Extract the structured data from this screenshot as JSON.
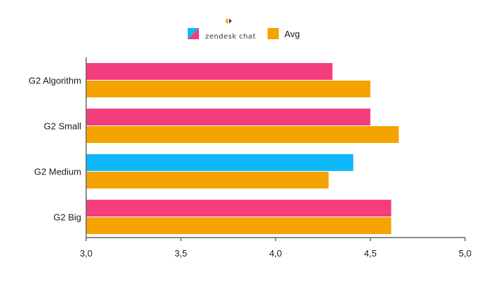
{
  "chart_data": {
    "type": "bar",
    "orientation": "horizontal",
    "categories": [
      "G2 Algorithm",
      "G2 Small",
      "G2 Medium",
      "G2 Big"
    ],
    "series": [
      {
        "name": "zendesk chat",
        "values": [
          4.3,
          4.5,
          4.41,
          4.61
        ]
      },
      {
        "name": "Avg",
        "values": [
          4.5,
          4.65,
          4.28,
          4.61
        ]
      }
    ],
    "xlim": [
      3.0,
      5.0
    ],
    "x_ticks": [
      "3,0",
      "3,5",
      "4,0",
      "4,5",
      "5,0"
    ],
    "x_tick_values": [
      3.0,
      3.5,
      4.0,
      4.5,
      5.0
    ],
    "grid": false,
    "legend_position": "top-center",
    "colors": {
      "zendesk_primary": "#f43d7c",
      "zendesk_highlight": "#0db9f9",
      "avg": "#f5a300",
      "axis": "#666666"
    },
    "highlight_category": "G2 Medium"
  },
  "legend": {
    "zendesk_label": "zendesk chat",
    "avg_label": "Avg"
  }
}
